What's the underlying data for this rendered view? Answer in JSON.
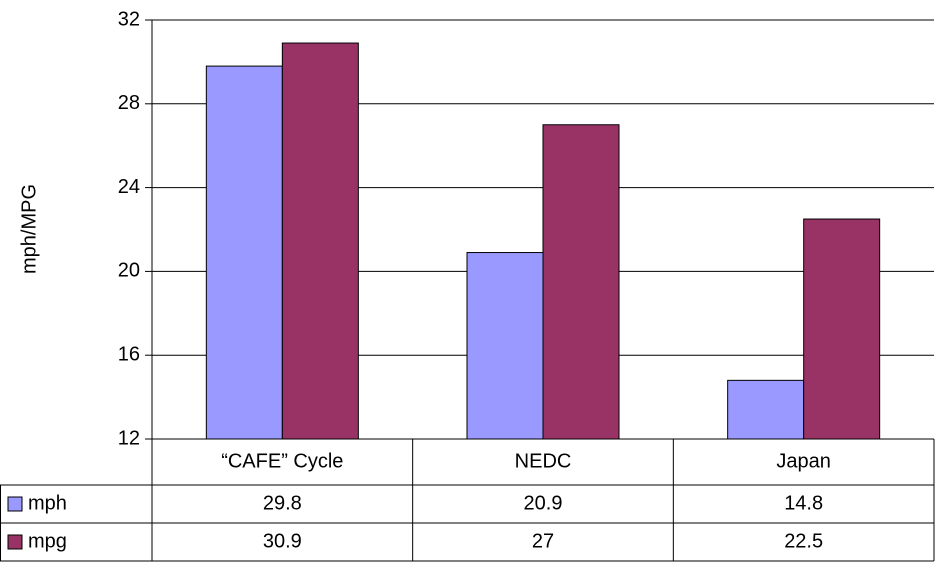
{
  "chart_data": {
    "type": "bar",
    "y_label": "mph/MPG",
    "categories": [
      "“CAFE” Cycle",
      "NEDC",
      "Japan"
    ],
    "series": [
      {
        "name": "mph",
        "color": "#9999ff",
        "values": [
          29.8,
          20.9,
          14.8
        ]
      },
      {
        "name": "mpg",
        "color": "#993366",
        "values": [
          30.9,
          27,
          22.5
        ]
      }
    ],
    "ylim": [
      12,
      32
    ],
    "yticks": [
      12,
      16,
      20,
      24,
      28,
      32
    ],
    "grid": true,
    "data_table": true
  }
}
